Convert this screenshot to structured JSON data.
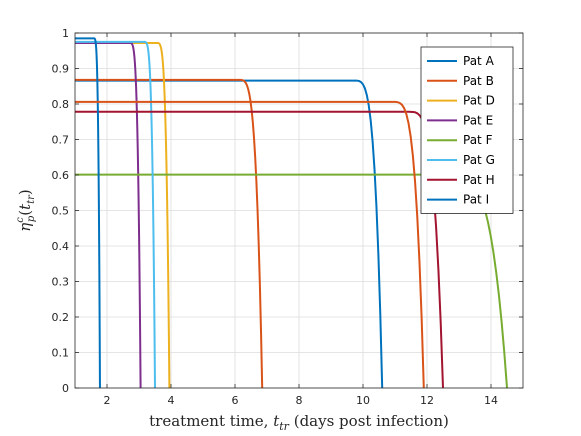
{
  "chart_data": {
    "type": "line",
    "title": "",
    "xlabel": "treatment time, t_tr (days post infection)",
    "xlabel_parts": {
      "pre": "treatment time, ",
      "var": "t",
      "sub": "tr",
      "post": " (days post infection)"
    },
    "ylabel": "η_p^c(t_tr)",
    "ylabel_parts": {
      "var": "η",
      "sub": "p",
      "sup": "c",
      "arg_var": "t",
      "arg_sub": "tr"
    },
    "xlim": [
      1,
      15
    ],
    "ylim": [
      0,
      1
    ],
    "xticks": [
      2,
      4,
      6,
      8,
      10,
      12,
      14
    ],
    "yticks": [
      0,
      0.1,
      0.2,
      0.3,
      0.4,
      0.5,
      0.6,
      0.7,
      0.8,
      0.9,
      1
    ],
    "xtick_labels": [
      "2",
      "4",
      "6",
      "8",
      "10",
      "12",
      "14"
    ],
    "ytick_labels": [
      "0",
      "0.1",
      "0.2",
      "0.3",
      "0.4",
      "0.5",
      "0.6",
      "0.7",
      "0.8",
      "0.9",
      "1"
    ],
    "grid": true,
    "legend_position": "top-right",
    "series": [
      {
        "name": "Pat A",
        "color": "#0072BD",
        "plateau": 0.866,
        "cutoff": 10.6,
        "decline_width": 0.9
      },
      {
        "name": "Pat B",
        "color": "#D95319",
        "plateau": 0.868,
        "cutoff": 6.85,
        "decline_width": 0.75
      },
      {
        "name": "Pat D",
        "color": "#EDB120",
        "plateau": 0.972,
        "cutoff": 3.95,
        "decline_width": 0.4
      },
      {
        "name": "Pat E",
        "color": "#7E2F8E",
        "plateau": 0.972,
        "cutoff": 3.05,
        "decline_width": 0.35
      },
      {
        "name": "Pat F",
        "color": "#77AC30",
        "plateau": 0.601,
        "cutoff": 14.5,
        "decline_width": 1.9
      },
      {
        "name": "Pat G",
        "color": "#4DBEEE",
        "plateau": 0.975,
        "cutoff": 3.5,
        "decline_width": 0.35
      },
      {
        "name": "Pat H",
        "color": "#A2142F",
        "plateau": 0.778,
        "cutoff": 12.5,
        "decline_width": 1.1
      },
      {
        "name": "Pat I",
        "color": "#0072BD",
        "plateau": 0.985,
        "cutoff": 1.78,
        "decline_width": 0.2
      },
      {
        "name": "",
        "color": "#D95319",
        "plateau": 0.806,
        "cutoff": 11.9,
        "decline_width": 1.0
      }
    ]
  }
}
